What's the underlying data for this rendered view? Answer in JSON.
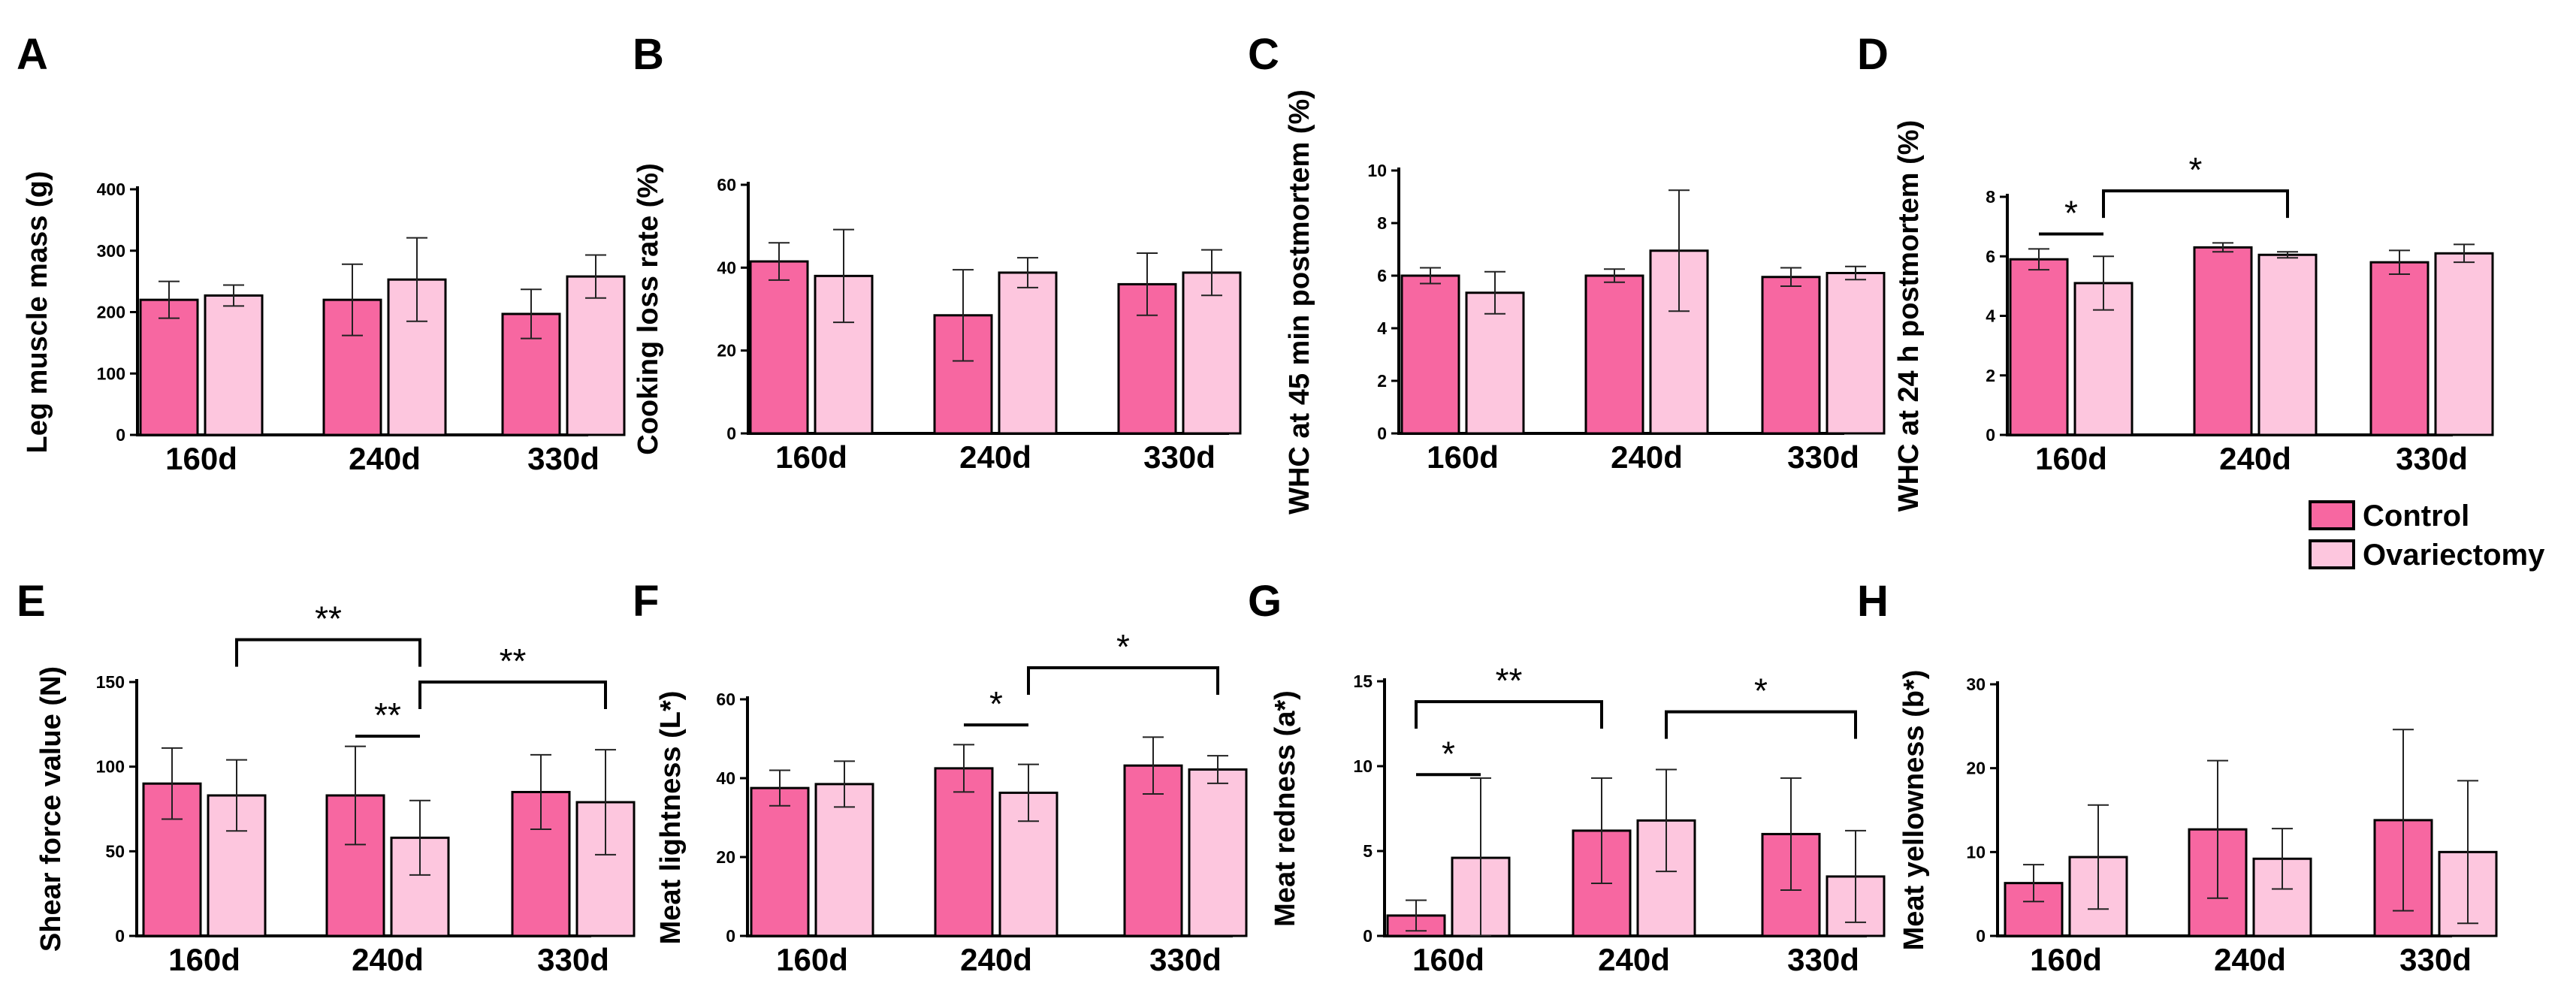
{
  "colors": {
    "control": "#f767a1",
    "ovariectomy": "#fdc6de"
  },
  "legend": [
    {
      "label": "Control",
      "color": "#f767a1"
    },
    {
      "label": "Ovariectomy",
      "color": "#fdc6de"
    }
  ],
  "chart_data": [
    {
      "id": "A",
      "letter": "A",
      "type": "bar",
      "categories": [
        "160d",
        "240d",
        "330d"
      ],
      "ylabel": "Leg muscle mass (g)",
      "ylim": [
        0,
        400
      ],
      "yticks": [
        0,
        100,
        200,
        300,
        400
      ],
      "series": [
        {
          "name": "Control",
          "values": [
            220,
            220,
            197
          ],
          "errors": [
            30,
            58,
            40
          ]
        },
        {
          "name": "Ovariectomy",
          "values": [
            227,
            253,
            258
          ],
          "errors": [
            17,
            68,
            35
          ]
        }
      ],
      "annotations": []
    },
    {
      "id": "B",
      "letter": "B",
      "type": "bar",
      "categories": [
        "160d",
        "240d",
        "330d"
      ],
      "ylabel": "Cooking loss rate (%)",
      "ylim": [
        0,
        60
      ],
      "yticks": [
        0,
        20,
        40,
        60
      ],
      "series": [
        {
          "name": "Control",
          "values": [
            41.5,
            28.5,
            36
          ],
          "errors": [
            4.5,
            11,
            7.5
          ]
        },
        {
          "name": "Ovariectomy",
          "values": [
            38,
            38.8,
            38.8
          ],
          "errors": [
            11.2,
            3.6,
            5.5
          ]
        }
      ],
      "annotations": []
    },
    {
      "id": "C",
      "letter": "C",
      "type": "bar",
      "categories": [
        "160d",
        "240d",
        "330d"
      ],
      "ylabel": "WHC at 45 min postmortem (%)",
      "ylim": [
        0,
        10
      ],
      "yticks": [
        0,
        2,
        4,
        6,
        8,
        10
      ],
      "series": [
        {
          "name": "Control",
          "values": [
            6.0,
            6.0,
            5.95
          ],
          "errors": [
            0.3,
            0.25,
            0.35
          ]
        },
        {
          "name": "Ovariectomy",
          "values": [
            5.35,
            6.95,
            6.1
          ],
          "errors": [
            0.8,
            2.3,
            0.25
          ]
        }
      ],
      "annotations": []
    },
    {
      "id": "D",
      "letter": "D",
      "type": "bar",
      "categories": [
        "160d",
        "240d",
        "330d"
      ],
      "ylabel": "WHC at 24 h postmortem (%)",
      "ylim": [
        0,
        8
      ],
      "yticks": [
        0,
        2,
        4,
        6,
        8
      ],
      "series": [
        {
          "name": "Control",
          "values": [
            5.9,
            6.3,
            5.8
          ],
          "errors": [
            0.35,
            0.15,
            0.4
          ]
        },
        {
          "name": "Ovariectomy",
          "values": [
            5.1,
            6.05,
            6.1
          ],
          "errors": [
            0.9,
            0.1,
            0.3
          ]
        }
      ],
      "annotations": [
        {
          "from": [
            0,
            0
          ],
          "to": [
            0,
            1
          ],
          "level": 6.75,
          "label": "*",
          "brackets": false
        },
        {
          "from": [
            0,
            1
          ],
          "to": [
            1,
            1
          ],
          "level": 8.2,
          "label": "*",
          "brackets": true
        }
      ]
    },
    {
      "id": "E",
      "letter": "E",
      "type": "bar",
      "categories": [
        "160d",
        "240d",
        "330d"
      ],
      "ylabel": "Shear force value (N)",
      "ylim": [
        0,
        150
      ],
      "yticks": [
        0,
        50,
        100,
        150
      ],
      "series": [
        {
          "name": "Control",
          "values": [
            90,
            83,
            85
          ],
          "errors": [
            21,
            29,
            22
          ]
        },
        {
          "name": "Ovariectomy",
          "values": [
            83,
            58,
            79
          ],
          "errors": [
            21,
            22,
            31
          ]
        }
      ],
      "annotations": [
        {
          "from": [
            0,
            1
          ],
          "to": [
            1,
            1
          ],
          "level": 175,
          "label": "**",
          "brackets": true
        },
        {
          "from": [
            1,
            0
          ],
          "to": [
            1,
            1
          ],
          "level": 118,
          "label": "**",
          "brackets": false
        },
        {
          "from": [
            1,
            1
          ],
          "to": [
            2,
            1
          ],
          "level": 150,
          "label": "**",
          "brackets": true
        }
      ]
    },
    {
      "id": "F",
      "letter": "F",
      "type": "bar",
      "categories": [
        "160d",
        "240d",
        "330d"
      ],
      "ylabel": "Meat lightness (L*)",
      "ylim": [
        0,
        60
      ],
      "yticks": [
        0,
        20,
        40,
        60
      ],
      "series": [
        {
          "name": "Control",
          "values": [
            37.5,
            42.5,
            43.2
          ],
          "errors": [
            4.5,
            6,
            7.2
          ]
        },
        {
          "name": "Ovariectomy",
          "values": [
            38.5,
            36.3,
            42.2
          ],
          "errors": [
            5.8,
            7.2,
            3.5
          ]
        }
      ],
      "annotations": [
        {
          "from": [
            1,
            0
          ],
          "to": [
            1,
            1
          ],
          "level": 53.5,
          "label": "*",
          "brackets": false
        },
        {
          "from": [
            1,
            1
          ],
          "to": [
            2,
            1
          ],
          "level": 68,
          "label": "*",
          "brackets": true
        }
      ]
    },
    {
      "id": "G",
      "letter": "G",
      "type": "bar",
      "categories": [
        "160d",
        "240d",
        "330d"
      ],
      "ylabel": "Meat redness (a*)",
      "ylim": [
        0,
        15
      ],
      "yticks": [
        0,
        5,
        10,
        15
      ],
      "series": [
        {
          "name": "Control",
          "values": [
            1.2,
            6.2,
            6.0
          ],
          "errors": [
            0.9,
            3.1,
            3.3
          ]
        },
        {
          "name": "Ovariectomy",
          "values": [
            4.6,
            6.8,
            3.5
          ],
          "errors": [
            4.7,
            3.0,
            2.7
          ]
        }
      ],
      "annotations": [
        {
          "from": [
            0,
            0
          ],
          "to": [
            0,
            1
          ],
          "level": 9.5,
          "label": "*",
          "brackets": false
        },
        {
          "from": [
            0,
            0
          ],
          "to": [
            1,
            0
          ],
          "level": 13.8,
          "label": "**",
          "brackets": true
        },
        {
          "from": [
            1,
            1
          ],
          "to": [
            2,
            1
          ],
          "level": 13.2,
          "label": "*",
          "brackets": true
        }
      ]
    },
    {
      "id": "H",
      "letter": "H",
      "type": "bar",
      "categories": [
        "160d",
        "240d",
        "330d"
      ],
      "ylabel": "Meat yellowness (b*)",
      "ylim": [
        0,
        30
      ],
      "yticks": [
        0,
        10,
        20,
        30
      ],
      "series": [
        {
          "name": "Control",
          "values": [
            6.3,
            12.7,
            13.8
          ],
          "errors": [
            2.2,
            8.2,
            10.8
          ]
        },
        {
          "name": "Ovariectomy",
          "values": [
            9.4,
            9.2,
            10.0
          ],
          "errors": [
            6.2,
            3.6,
            8.5
          ]
        }
      ],
      "annotations": []
    }
  ]
}
